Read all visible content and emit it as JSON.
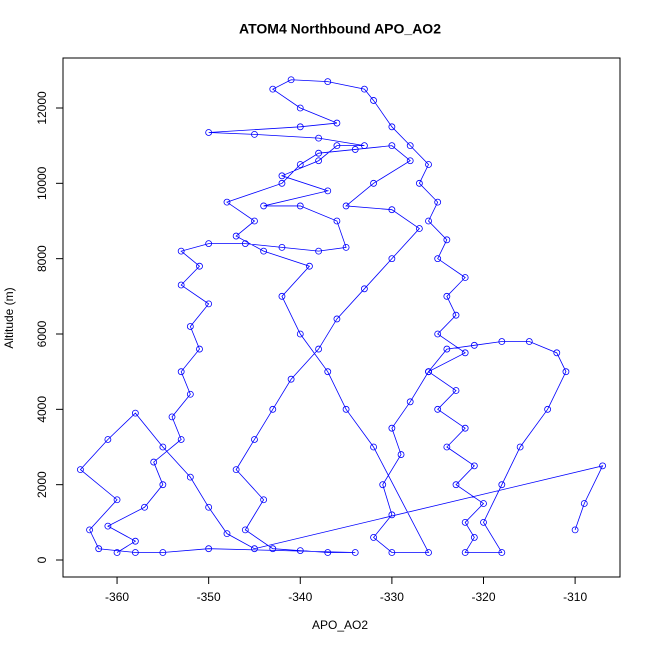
{
  "chart_data": {
    "type": "line",
    "title": "ATOM4 Northbound APO_AO2",
    "x_label": "APO_AO2",
    "y_label": "Altitude (m)",
    "xlim": [
      -365.9,
      -305.1
    ],
    "ylim": [
      -451,
      13327
    ],
    "xticks": [
      -360,
      -350,
      -340,
      -330,
      -320,
      -310
    ],
    "yticks": [
      0,
      2000,
      4000,
      6000,
      8000,
      10000,
      12000
    ],
    "series": [
      {
        "name": "APO_AO2",
        "color": "#0000ff",
        "marker": "circle",
        "x": [
          -360,
          -358,
          -361,
          -357,
          -355,
          -356,
          -353,
          -354,
          -352,
          -353,
          -351,
          -352,
          -350,
          -353,
          -351,
          -353,
          -350,
          -346,
          -342,
          -338,
          -335,
          -336,
          -340,
          -344,
          -337,
          -342,
          -338,
          -336,
          -333,
          -338,
          -345,
          -350,
          -340,
          -336,
          -340,
          -343,
          -341,
          -337,
          -333,
          -332,
          -330,
          -328,
          -326,
          -327,
          -325,
          -326,
          -324,
          -325,
          -322,
          -324,
          -323,
          -325,
          -322,
          -326,
          -323,
          -325,
          -322,
          -324,
          -321,
          -323,
          -320,
          -322,
          -321,
          -322,
          -318,
          -320,
          -318,
          -316,
          -313,
          -311,
          -312,
          -315,
          -318,
          -321,
          -324,
          -326,
          -328,
          -330,
          -329,
          -331,
          -330,
          -332,
          -330,
          -326,
          -332,
          -335,
          -337,
          -340,
          -342,
          -339,
          -344,
          -347,
          -345,
          -348,
          -342,
          -340,
          -338,
          -334,
          -330,
          -328,
          -332,
          -335,
          -330,
          -327,
          -330,
          -333,
          -336,
          -338,
          -341,
          -343,
          -345,
          -347,
          -344,
          -346,
          -343,
          -340,
          -337,
          -334,
          -350,
          -355,
          -358,
          -362,
          -363,
          -360,
          -364,
          -361,
          -358,
          -355,
          -352,
          -350,
          -348,
          -345,
          -307,
          -309,
          -310
        ],
        "values": [
          200,
          500,
          900,
          1400,
          2000,
          2600,
          3200,
          3800,
          4400,
          5000,
          5600,
          6200,
          6800,
          7300,
          7800,
          8200,
          8400,
          8400,
          8300,
          8200,
          8300,
          9000,
          9400,
          9400,
          9800,
          10200,
          10600,
          11000,
          11000,
          11200,
          11300,
          11350,
          11500,
          11600,
          12000,
          12500,
          12750,
          12700,
          12500,
          12200,
          11500,
          11000,
          10500,
          10000,
          9500,
          9000,
          8500,
          8000,
          7500,
          7000,
          6500,
          6000,
          5500,
          5000,
          4500,
          4000,
          3500,
          3000,
          2500,
          2000,
          1500,
          1000,
          600,
          200,
          200,
          1000,
          2000,
          3000,
          4000,
          5000,
          5500,
          5800,
          5800,
          5700,
          5600,
          5000,
          4200,
          3500,
          2800,
          2000,
          1200,
          600,
          200,
          200,
          3000,
          4000,
          5000,
          6000,
          7000,
          7800,
          8200,
          8600,
          9000,
          9500,
          10000,
          10500,
          10800,
          10900,
          11000,
          10600,
          10000,
          9400,
          9300,
          8800,
          8000,
          7200,
          6400,
          5600,
          4800,
          4000,
          3200,
          2400,
          1600,
          800,
          300,
          250,
          200,
          200,
          300,
          200,
          200,
          300,
          800,
          1600,
          2400,
          3200,
          3900,
          3000,
          2200,
          1400,
          700,
          300,
          2500,
          1500,
          800
        ]
      }
    ]
  }
}
